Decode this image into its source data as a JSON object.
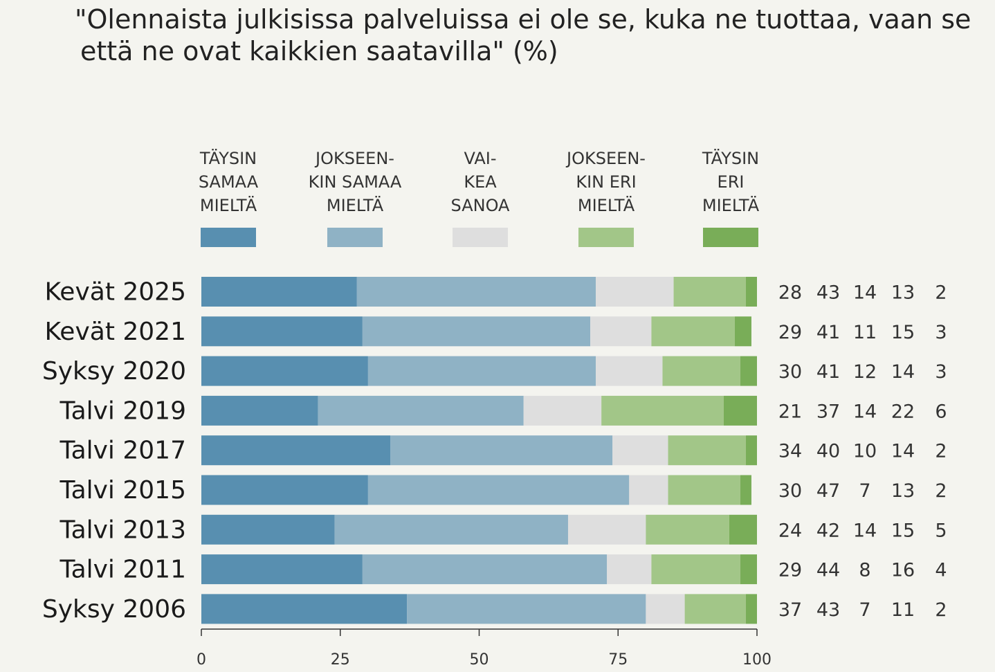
{
  "chart_data": {
    "type": "bar",
    "orientation": "horizontal-stacked",
    "title_lines": [
      "\"Olennaista julkisissa palveluissa ei ole se, kuka ne tuottaa, vaan se",
      " että ne ovat kaikkien saatavilla\" (%)"
    ],
    "legend": [
      {
        "lines": [
          "TÄYSIN",
          "SAMAA",
          "MIELTÄ"
        ],
        "color": "#588fb0"
      },
      {
        "lines": [
          "JOKSEEN-",
          "KIN SAMAA",
          "MIELTÄ"
        ],
        "color": "#8fb2c5"
      },
      {
        "lines": [
          "VAI-",
          "KEA",
          "SANOA"
        ],
        "color": "#dedede"
      },
      {
        "lines": [
          "JOKSEEN-",
          "KIN ERI",
          "MIELTÄ"
        ],
        "color": "#a2c688"
      },
      {
        "lines": [
          "TÄYSIN",
          "ERI",
          "MIELTÄ"
        ],
        "color": "#79ad58"
      }
    ],
    "categories": [
      "Kevät 2025",
      "Kevät 2021",
      "Syksy 2020",
      "Talvi 2019",
      "Talvi 2017",
      "Talvi 2015",
      "Talvi 2013",
      "Talvi 2011",
      "Syksy 2006"
    ],
    "series": [
      {
        "name": "TÄYSIN SAMAA MIELTÄ",
        "values": [
          28,
          29,
          30,
          21,
          34,
          30,
          24,
          29,
          37
        ]
      },
      {
        "name": "JOKSEENKIN SAMAA MIELTÄ",
        "values": [
          43,
          41,
          41,
          37,
          40,
          47,
          42,
          44,
          43
        ]
      },
      {
        "name": "VAIKEA SANOA",
        "values": [
          14,
          11,
          12,
          14,
          10,
          7,
          14,
          8,
          7
        ]
      },
      {
        "name": "JOKSEENKIN ERI MIELTÄ",
        "values": [
          13,
          15,
          14,
          22,
          14,
          13,
          15,
          16,
          11
        ]
      },
      {
        "name": "TÄYSIN ERI MIELTÄ",
        "values": [
          2,
          3,
          3,
          6,
          2,
          2,
          5,
          4,
          2
        ]
      }
    ],
    "xlim": [
      0,
      100
    ],
    "xticks": [
      0,
      25,
      50,
      75,
      100
    ],
    "xlabel": "",
    "ylabel": ""
  }
}
